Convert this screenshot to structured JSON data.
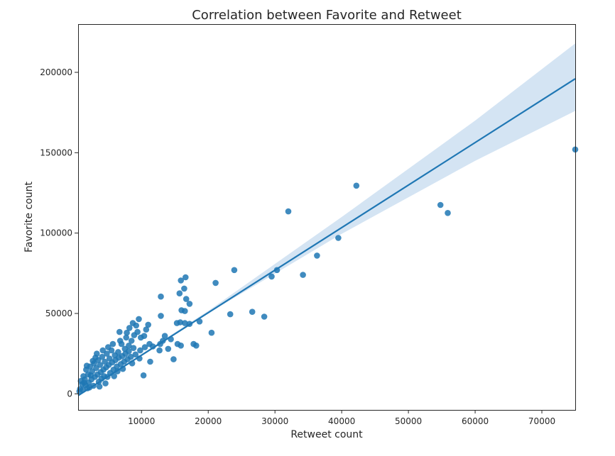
{
  "chart_data": {
    "type": "scatter",
    "title": "Correlation between Favorite and Retweet",
    "xlabel": "Retweet count",
    "ylabel": "Favorite count",
    "xlim": [
      500,
      75000
    ],
    "ylim": [
      -10000,
      230000
    ],
    "xticks": [
      10000,
      20000,
      30000,
      40000,
      50000,
      60000,
      70000
    ],
    "yticks": [
      0,
      50000,
      100000,
      150000,
      200000
    ],
    "grid": false,
    "colors": {
      "points": "#1f77b4",
      "line": "#1f77b4",
      "band": "#c6dbef"
    },
    "regression_line": {
      "start": [
        500,
        -1100
      ],
      "end": [
        75000,
        196000
      ]
    },
    "confidence_band": {
      "upper": [
        [
          500,
          -600
        ],
        [
          20000,
          51600
        ],
        [
          40000,
          110000
        ],
        [
          60000,
          170000
        ],
        [
          75000,
          218000
        ]
      ],
      "lower": [
        [
          500,
          -1600
        ],
        [
          20000,
          50100
        ],
        [
          40000,
          99500
        ],
        [
          60000,
          145000
        ],
        [
          75000,
          176000
        ]
      ]
    },
    "points": [
      [
        75000,
        152000
      ],
      [
        42200,
        129500
      ],
      [
        32000,
        113500
      ],
      [
        54800,
        117500
      ],
      [
        55900,
        112500
      ],
      [
        39500,
        97000
      ],
      [
        36300,
        86000
      ],
      [
        34200,
        74000
      ],
      [
        30300,
        77000
      ],
      [
        29500,
        73000
      ],
      [
        23900,
        77000
      ],
      [
        21100,
        69000
      ],
      [
        26600,
        51000
      ],
      [
        28400,
        48000
      ],
      [
        23300,
        49500
      ],
      [
        20500,
        38000
      ],
      [
        16600,
        72500
      ],
      [
        15900,
        70500
      ],
      [
        16400,
        65500
      ],
      [
        15700,
        62500
      ],
      [
        16700,
        59000
      ],
      [
        17200,
        56000
      ],
      [
        12900,
        60500
      ],
      [
        16000,
        52000
      ],
      [
        16500,
        51500
      ],
      [
        18700,
        45000
      ],
      [
        17200,
        43500
      ],
      [
        16500,
        44000
      ],
      [
        15800,
        44500
      ],
      [
        15300,
        44000
      ],
      [
        17800,
        31000
      ],
      [
        18200,
        30000
      ],
      [
        15900,
        30000
      ],
      [
        15400,
        31000
      ],
      [
        13500,
        36000
      ],
      [
        14400,
        34000
      ],
      [
        13200,
        33000
      ],
      [
        12800,
        31000
      ],
      [
        14000,
        28000
      ],
      [
        12700,
        27000
      ],
      [
        14800,
        21500
      ],
      [
        11300,
        20000
      ],
      [
        10300,
        11500
      ],
      [
        12900,
        48500
      ],
      [
        11000,
        43000
      ],
      [
        9600,
        46500
      ],
      [
        9200,
        42500
      ],
      [
        8700,
        44000
      ],
      [
        8200,
        41000
      ],
      [
        7800,
        38000
      ],
      [
        6700,
        38500
      ],
      [
        10700,
        40000
      ],
      [
        10400,
        36000
      ],
      [
        9900,
        35000
      ],
      [
        11200,
        31000
      ],
      [
        10500,
        29000
      ],
      [
        9800,
        27000
      ],
      [
        11700,
        29500
      ],
      [
        8500,
        33000
      ],
      [
        8100,
        30000
      ],
      [
        7500,
        28000
      ],
      [
        7000,
        31000
      ],
      [
        6500,
        26000
      ],
      [
        6000,
        24000
      ],
      [
        5500,
        27000
      ],
      [
        5200,
        22000
      ],
      [
        4800,
        25000
      ],
      [
        4500,
        20000
      ],
      [
        4100,
        23000
      ],
      [
        3800,
        18000
      ],
      [
        3500,
        21000
      ],
      [
        3200,
        16000
      ],
      [
        2900,
        19000
      ],
      [
        2600,
        14000
      ],
      [
        2300,
        17000
      ],
      [
        2000,
        12000
      ],
      [
        1700,
        15000
      ],
      [
        1500,
        9000
      ],
      [
        1300,
        11000
      ],
      [
        1100,
        6000
      ],
      [
        900,
        8000
      ],
      [
        800,
        3000
      ],
      [
        700,
        1500
      ],
      [
        1200,
        2500
      ],
      [
        1600,
        5500
      ],
      [
        2100,
        7000
      ],
      [
        2500,
        9000
      ],
      [
        3000,
        10500
      ],
      [
        3400,
        12000
      ],
      [
        3900,
        13500
      ],
      [
        4300,
        15000
      ],
      [
        4700,
        16500
      ],
      [
        5100,
        18000
      ],
      [
        5600,
        19500
      ],
      [
        6100,
        21000
      ],
      [
        6600,
        22500
      ],
      [
        7100,
        23500
      ],
      [
        7600,
        25000
      ],
      [
        8100,
        26500
      ],
      [
        8800,
        28500
      ],
      [
        5800,
        15000
      ],
      [
        6300,
        17000
      ],
      [
        6900,
        18500
      ],
      [
        7400,
        20000
      ],
      [
        7900,
        21500
      ],
      [
        8400,
        23000
      ],
      [
        9100,
        24500
      ],
      [
        3600,
        7500
      ],
      [
        4000,
        9500
      ],
      [
        4400,
        11000
      ],
      [
        2800,
        5000
      ],
      [
        2200,
        4000
      ],
      [
        1900,
        3500
      ],
      [
        5300,
        13000
      ],
      [
        4900,
        10500
      ],
      [
        6400,
        14000
      ],
      [
        3300,
        25000
      ],
      [
        4200,
        27000
      ],
      [
        5000,
        29000
      ],
      [
        2700,
        20500
      ],
      [
        1800,
        17500
      ],
      [
        3100,
        22500
      ],
      [
        6800,
        33000
      ],
      [
        7700,
        35000
      ],
      [
        5700,
        31000
      ],
      [
        9400,
        38500
      ],
      [
        8900,
        36500
      ],
      [
        2400,
        11500
      ],
      [
        1400,
        7000
      ],
      [
        4600,
        6500
      ],
      [
        5900,
        11000
      ],
      [
        7200,
        15500
      ],
      [
        8600,
        19000
      ],
      [
        9700,
        22000
      ],
      [
        3700,
        4500
      ]
    ]
  }
}
